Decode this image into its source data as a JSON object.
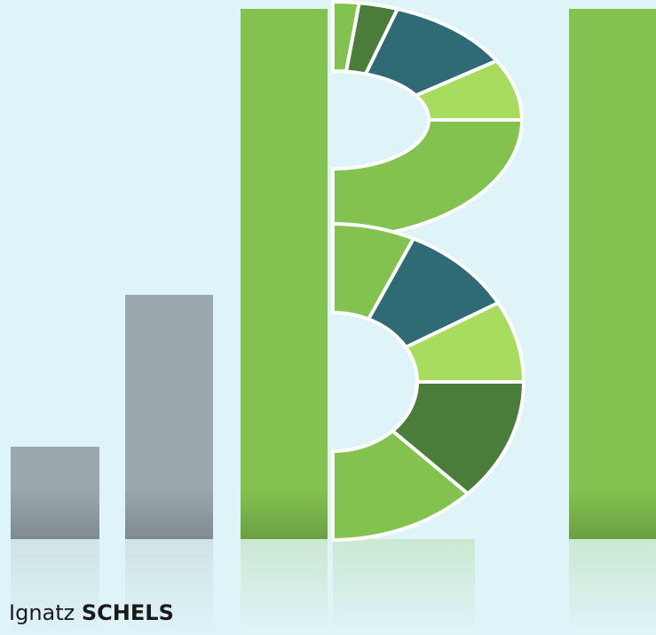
{
  "author": {
    "first_name": "Ignatz",
    "last_name": "SCHELS"
  }
}
